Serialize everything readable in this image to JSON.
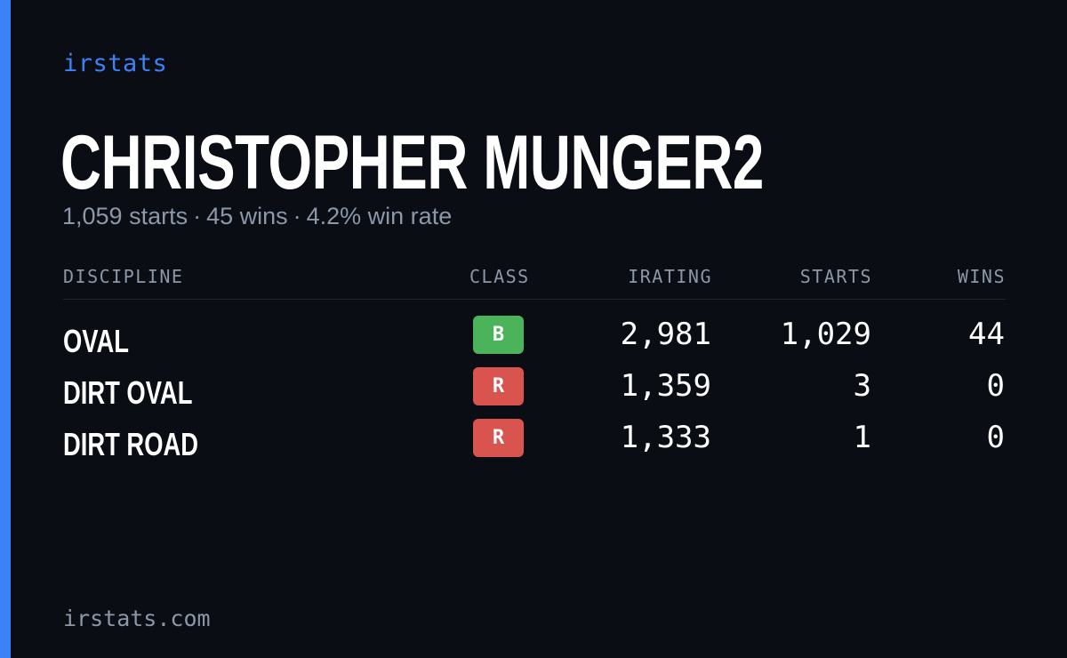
{
  "brand": "irstats",
  "driver": {
    "name": "CHRISTOPHER MUNGER2"
  },
  "summary": {
    "starts": "1,059 starts",
    "wins": "45 wins",
    "win_rate": "4.2% win rate",
    "separator": "·"
  },
  "table": {
    "headers": {
      "discipline": "DISCIPLINE",
      "class": "CLASS",
      "irating": "IRATING",
      "starts": "STARTS",
      "wins": "WINS"
    },
    "rows": [
      {
        "discipline": "OVAL",
        "class": "B",
        "class_color": "#4bb35a",
        "irating": "2,981",
        "starts": "1,029",
        "wins": "44"
      },
      {
        "discipline": "DIRT OVAL",
        "class": "R",
        "class_color": "#d9534f",
        "irating": "1,359",
        "starts": "3",
        "wins": "0"
      },
      {
        "discipline": "DIRT ROAD",
        "class": "R",
        "class_color": "#d9534f",
        "irating": "1,333",
        "starts": "1",
        "wins": "0"
      }
    ]
  },
  "footer": {
    "site": "irstats.com"
  },
  "colors": {
    "accent": "#3b82f6",
    "background": "#0a0d14",
    "muted": "#8c97a8"
  }
}
